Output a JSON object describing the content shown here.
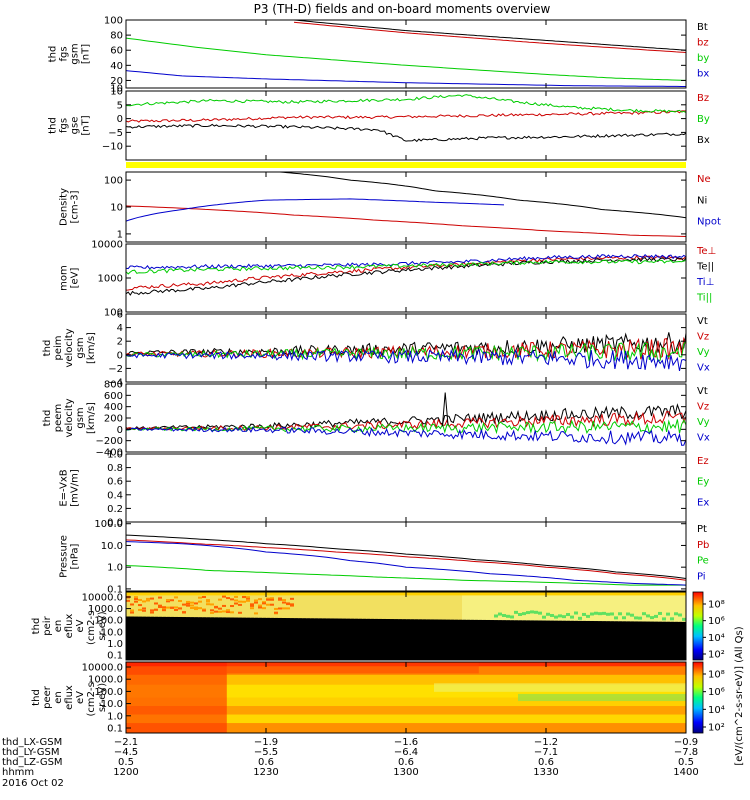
{
  "title": "P3 (TH-D) fields and on-board moments overview",
  "chart_data": [
    {
      "type": "line",
      "panel": "fgs-gsm",
      "ylabel_lines": [
        "thd",
        "fgs",
        "gsm",
        "[nT]"
      ],
      "ylim": [
        10,
        100
      ],
      "yticks": [
        "100",
        "80",
        "60",
        "40",
        "20",
        "10"
      ],
      "ytick_values": [
        100,
        80,
        60,
        40,
        20,
        10
      ],
      "series": [
        {
          "name": "Bt",
          "color": "#000000",
          "x": [
            12.6,
            13.0,
            13.5,
            14.0
          ],
          "y": [
            100,
            86,
            73,
            60
          ]
        },
        {
          "name": "bz",
          "color": "#cc0000",
          "x": [
            12.6,
            13.0,
            13.5,
            14.0
          ],
          "y": [
            97,
            83,
            69,
            57
          ]
        },
        {
          "name": "by",
          "color": "#00cc00",
          "x": [
            12.0,
            12.25,
            12.5,
            12.75,
            13.0,
            13.25,
            13.5,
            13.75,
            14.0
          ],
          "y": [
            76,
            64,
            54,
            47,
            40,
            34,
            28,
            23,
            20
          ]
        },
        {
          "name": "bx",
          "color": "#0000cc",
          "x": [
            12.0,
            12.2,
            12.5,
            12.8,
            13.0,
            13.3,
            13.6,
            14.0
          ],
          "y": [
            33,
            26,
            22,
            19,
            17,
            15,
            13,
            12
          ]
        }
      ]
    },
    {
      "type": "line",
      "panel": "fgs-gse",
      "ylabel_lines": [
        "thd",
        "fgs",
        "gse",
        "[nT]"
      ],
      "ylim": [
        -15,
        10
      ],
      "yticks": [
        "10",
        "5",
        "0",
        "−5",
        "−10"
      ],
      "ytick_values": [
        10,
        5,
        0,
        -5,
        -10
      ],
      "series": [
        {
          "name": "Bz",
          "color": "#cc0000",
          "x": [
            12.0,
            12.3,
            12.6,
            12.9,
            13.2,
            13.5,
            13.8,
            14.0
          ],
          "y": [
            -1,
            -0.5,
            0.5,
            0.5,
            1,
            1.5,
            2,
            2.5
          ]
        },
        {
          "name": "By",
          "color": "#00cc00",
          "x": [
            12.0,
            12.3,
            12.6,
            12.8,
            13.0,
            13.2,
            13.4,
            13.6,
            13.8,
            14.0
          ],
          "y": [
            5,
            6.5,
            6,
            6.5,
            7,
            8.5,
            6,
            4,
            3,
            2.5
          ]
        },
        {
          "name": "Bx",
          "color": "#000000",
          "x": [
            12.0,
            12.3,
            12.6,
            12.9,
            13.0,
            13.3,
            13.6,
            13.8,
            14.0
          ],
          "y": [
            -3,
            -2.5,
            -3,
            -4,
            -8,
            -7,
            -6.5,
            -6,
            -5.5
          ]
        }
      ]
    },
    {
      "type": "line",
      "panel": "density",
      "log_scale": true,
      "ylabel_lines": [
        "Density",
        "[cm-3]"
      ],
      "ylim": [
        0.5,
        200
      ],
      "yticks": [
        "100",
        "10",
        "1"
      ],
      "ytick_values": [
        100,
        10,
        1
      ],
      "series": [
        {
          "name": "Ne",
          "color": "#cc0000",
          "x": [
            12.0,
            12.3,
            12.6,
            12.9,
            13.2,
            13.5,
            13.8,
            14.0
          ],
          "y": [
            11,
            8,
            5,
            3.2,
            2,
            1.3,
            0.9,
            0.8
          ]
        },
        {
          "name": "Ni",
          "color": "#000000",
          "x": [
            12.55,
            12.8,
            13.1,
            13.4,
            13.7,
            14.0
          ],
          "y": [
            200,
            100,
            40,
            18,
            8,
            4
          ]
        },
        {
          "name": "Npot",
          "color": "#0000cc",
          "x": [
            12.0,
            12.2,
            12.5,
            12.8,
            13.1,
            13.35
          ],
          "y": [
            3,
            8,
            18,
            20,
            15,
            12
          ]
        }
      ]
    },
    {
      "type": "line",
      "panel": "temperature",
      "log_scale": true,
      "ylabel_lines": [
        "mom",
        "[eV]"
      ],
      "ylim": [
        100,
        10000
      ],
      "yticks": [
        "10000",
        "1000",
        "100"
      ],
      "ytick_values": [
        10000,
        1000,
        100
      ],
      "series": [
        {
          "name": "Te⊥",
          "color": "#cc0000",
          "x": [
            12.0,
            12.3,
            12.6,
            12.9,
            13.2,
            13.5,
            13.8,
            14.0
          ],
          "y": [
            500,
            700,
            1200,
            1800,
            2500,
            3500,
            4000,
            4000
          ]
        },
        {
          "name": "Te||",
          "color": "#000000",
          "x": [
            12.0,
            12.3,
            12.6,
            12.9,
            13.2,
            13.5,
            13.8,
            14.0
          ],
          "y": [
            350,
            500,
            900,
            1500,
            2200,
            3000,
            3500,
            3500
          ]
        },
        {
          "name": "Ti⊥",
          "color": "#0000cc",
          "x": [
            12.0,
            12.3,
            12.6,
            12.9,
            13.2,
            13.5,
            13.8,
            14.0
          ],
          "y": [
            2000,
            2200,
            2300,
            2500,
            3000,
            4000,
            4500,
            4200
          ]
        },
        {
          "name": "Ti||",
          "color": "#00cc00",
          "x": [
            12.0,
            12.3,
            12.6,
            12.9,
            13.2,
            13.5,
            13.8,
            14.0
          ],
          "y": [
            1500,
            1800,
            2000,
            2200,
            2500,
            3000,
            3000,
            3000
          ]
        }
      ]
    },
    {
      "type": "line",
      "panel": "peim-velocity",
      "ylabel_lines": [
        "thd",
        "peim",
        "velocity",
        "gsm",
        "[km/s]"
      ],
      "ylim": [
        -4,
        6
      ],
      "yticks": [
        "6",
        "4",
        "2",
        "0",
        "−2",
        "−4"
      ],
      "ytick_values": [
        6,
        4,
        2,
        0,
        -2,
        -4
      ],
      "series": [
        {
          "name": "Vt",
          "color": "#000000",
          "x": [
            12.0,
            12.5,
            13.0,
            13.5,
            14.0
          ],
          "y": [
            0.3,
            0.5,
            0.9,
            1.3,
            1.8
          ]
        },
        {
          "name": "Vz",
          "color": "#cc0000",
          "x": [
            12.0,
            12.5,
            13.0,
            13.5,
            14.0
          ],
          "y": [
            0.1,
            0.2,
            0.4,
            0.7,
            0.9
          ]
        },
        {
          "name": "Vy",
          "color": "#00cc00",
          "x": [
            12.0,
            12.5,
            13.0,
            13.5,
            14.0
          ],
          "y": [
            0,
            0.1,
            0.2,
            0.3,
            0.4
          ]
        },
        {
          "name": "Vx",
          "color": "#0000cc",
          "x": [
            12.0,
            12.5,
            13.0,
            13.5,
            14.0
          ],
          "y": [
            -0.1,
            -0.1,
            -0.3,
            -0.5,
            -0.8
          ]
        }
      ]
    },
    {
      "type": "line",
      "panel": "peem-velocity",
      "ylabel_lines": [
        "thd",
        "peem",
        "velocity",
        "gsm",
        "[km/s]"
      ],
      "ylim": [
        -400,
        800
      ],
      "yticks": [
        "800",
        "600",
        "400",
        "200",
        "0",
        "−200",
        "−400"
      ],
      "ytick_values": [
        800,
        600,
        400,
        200,
        0,
        -200,
        -400
      ],
      "series": [
        {
          "name": "Vt",
          "color": "#000000",
          "x": [
            12.0,
            12.5,
            13.0,
            13.5,
            14.0
          ],
          "y": [
            20,
            60,
            150,
            250,
            320
          ]
        },
        {
          "name": "Vz",
          "color": "#cc0000",
          "x": [
            12.0,
            12.5,
            13.0,
            13.5,
            14.0
          ],
          "y": [
            10,
            30,
            80,
            150,
            200
          ]
        },
        {
          "name": "Vy",
          "color": "#00cc00",
          "x": [
            12.0,
            12.5,
            13.0,
            13.5,
            14.0
          ],
          "y": [
            0,
            10,
            20,
            40,
            50
          ]
        },
        {
          "name": "Vx",
          "color": "#0000cc",
          "x": [
            12.0,
            12.5,
            13.0,
            13.5,
            14.0
          ],
          "y": [
            0,
            -10,
            -60,
            -120,
            -160
          ]
        }
      ]
    },
    {
      "type": "line",
      "panel": "e-field",
      "ylabel_lines": [
        "E=-VxB",
        "[mV/m]"
      ],
      "ylim": [
        0,
        1
      ],
      "yticks": [
        "1.0",
        "0.8",
        "0.6",
        "0.4",
        "0.2",
        "0.0"
      ],
      "ytick_values": [
        1.0,
        0.8,
        0.6,
        0.4,
        0.2,
        0.0
      ],
      "series": [
        {
          "name": "Ez",
          "color": "#cc0000",
          "x": [],
          "y": []
        },
        {
          "name": "Ey",
          "color": "#00cc00",
          "x": [],
          "y": []
        },
        {
          "name": "Ex",
          "color": "#0000cc",
          "x": [],
          "y": []
        }
      ]
    },
    {
      "type": "line",
      "panel": "pressure",
      "log_scale": true,
      "ylabel_lines": [
        "Pressure",
        "[nPa]"
      ],
      "ylim": [
        0.08,
        120
      ],
      "yticks": [
        "100.0",
        "10.0",
        "1.0",
        "0.1"
      ],
      "ytick_values": [
        100,
        10,
        1,
        0.1
      ],
      "series": [
        {
          "name": "Pt",
          "color": "#000000",
          "x": [
            12.0,
            12.25,
            12.5,
            12.75,
            13.0,
            13.25,
            13.5,
            13.75,
            14.0
          ],
          "y": [
            30,
            20,
            12,
            7,
            4,
            2.2,
            1.2,
            0.6,
            0.3
          ]
        },
        {
          "name": "Pb",
          "color": "#cc0000",
          "x": [
            12.0,
            12.25,
            12.5,
            12.75,
            13.0,
            13.25,
            13.5,
            13.75,
            14.0
          ],
          "y": [
            18,
            12,
            8,
            5,
            3,
            1.8,
            1,
            0.5,
            0.25
          ]
        },
        {
          "name": "Pe",
          "color": "#00cc00",
          "x": [
            12.0,
            12.3,
            12.6,
            12.9,
            13.2,
            13.5,
            13.8,
            14.0
          ],
          "y": [
            1.2,
            0.7,
            0.5,
            0.35,
            0.25,
            0.2,
            0.15,
            0.15
          ]
        },
        {
          "name": "Pi",
          "color": "#0000cc",
          "x": [
            12.0,
            12.2,
            12.5,
            12.8,
            13.0,
            13.3,
            13.6,
            13.8,
            14.0
          ],
          "y": [
            15,
            12,
            5,
            2,
            1,
            0.5,
            0.25,
            0.18,
            0.15
          ]
        }
      ]
    },
    {
      "type": "heatmap",
      "panel": "peir-spectrogram",
      "ylabel_lines": [
        "thd",
        "peir",
        "en",
        "eflux",
        "eV",
        "(cm2-s-",
        "sr-eV)"
      ],
      "yticks": [
        "10000.0",
        "1000.0",
        "100.0",
        "10.0",
        "1.0",
        "0.1"
      ],
      "description_bands": [
        {
          "from_frac": 0.0,
          "to_frac": 0.04,
          "color": "#ffe000"
        },
        {
          "from_frac": 0.04,
          "to_frac": 0.38,
          "color": "#f0e030"
        },
        {
          "from_frac": 0.38,
          "to_frac": 1.0,
          "color": "#000000"
        }
      ]
    },
    {
      "type": "heatmap",
      "panel": "peer-spectrogram",
      "ylabel_lines": [
        "thd",
        "peer",
        "en",
        "eflux",
        "eV",
        "(cm2-s-",
        "sr-eV)"
      ],
      "yticks": [
        "10000.0",
        "1000.0",
        "100.0",
        "10.0",
        "1.0",
        "0.1"
      ]
    }
  ],
  "colorbar": {
    "label": "[eV/(cm^2-s-sr-eV)] (All Qs)",
    "ticks_top": [
      "10⁸",
      "10⁶",
      "10⁴",
      "10²"
    ],
    "ticks_bottom": [
      "10⁸",
      "10⁶",
      "10⁴",
      "10²"
    ]
  },
  "xaxis": {
    "tick_values": [
      12.0,
      12.5,
      13.0,
      13.5,
      14.0
    ],
    "rows": [
      {
        "label": "thd_LX-GSM",
        "values": [
          "−2.1",
          "−1.9",
          "−1.6",
          "−1.2",
          "−0.9"
        ]
      },
      {
        "label": "thd_LY-GSM",
        "values": [
          "−4.5",
          "−5.5",
          "−6.4",
          "−7.1",
          "−7.8"
        ]
      },
      {
        "label": "thd_LZ-GSM",
        "values": [
          "0.5",
          "0.6",
          "0.6",
          "0.6",
          "0.5"
        ]
      },
      {
        "label": "hhmm",
        "values": [
          "1200",
          "1230",
          "1300",
          "1330",
          "1400"
        ]
      }
    ],
    "date_label": "2016 Oct 02"
  }
}
